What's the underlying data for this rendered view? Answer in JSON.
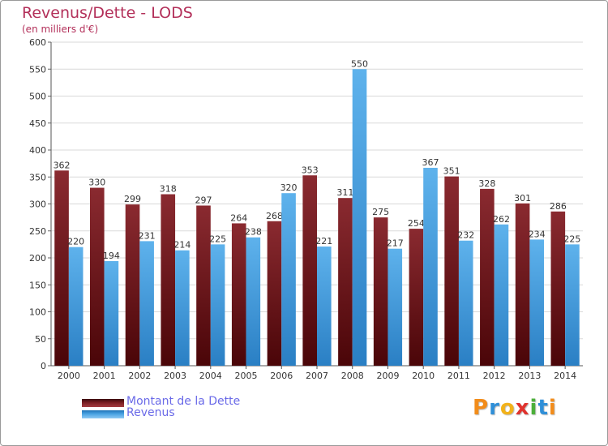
{
  "title": "Revenus/Dette - LODS",
  "subtitle": "(en milliers d'€)",
  "colors": {
    "title": "#b3305a",
    "dette": "#7a1f24",
    "revenus": "#4aa3e3",
    "legend_text": "#6a6ae8",
    "grid": "#d9d9d9"
  },
  "legend": {
    "items": [
      {
        "label": "Montant de la Dette",
        "color": "#7a1f24",
        "icon": "dette-swatch"
      },
      {
        "label": "Revenus",
        "color": "#4aa3e3",
        "icon": "revenus-swatch"
      }
    ]
  },
  "logo": {
    "text": "Proxiti"
  },
  "chart_data": {
    "type": "bar",
    "title": "Revenus/Dette - LODS",
    "subtitle": "(en milliers d'€)",
    "categories": [
      "2000",
      "2001",
      "2002",
      "2003",
      "2004",
      "2005",
      "2006",
      "2007",
      "2008",
      "2009",
      "2010",
      "2011",
      "2012",
      "2013",
      "2014"
    ],
    "series": [
      {
        "name": "Montant de la Dette",
        "values": [
          362,
          330,
          299,
          318,
          297,
          264,
          268,
          353,
          311,
          275,
          254,
          351,
          328,
          301,
          286
        ]
      },
      {
        "name": "Revenus",
        "values": [
          220,
          194,
          231,
          214,
          225,
          238,
          320,
          221,
          550,
          217,
          367,
          232,
          262,
          234,
          225
        ]
      }
    ],
    "ylim": [
      0,
      600
    ],
    "yticks": [
      0,
      50,
      100,
      150,
      200,
      250,
      300,
      350,
      400,
      450,
      500,
      550,
      600
    ],
    "grid": true,
    "legend_position": "bottom-left"
  }
}
